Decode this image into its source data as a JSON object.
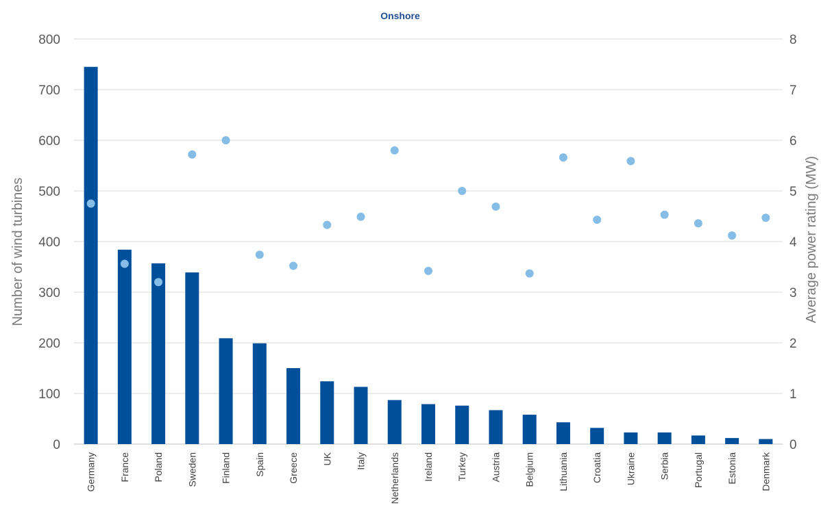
{
  "chart_data": {
    "type": "bar",
    "title": "Onshore",
    "categories": [
      "Germany",
      "France",
      "Poland",
      "Sweden",
      "Finland",
      "Spain",
      "Greece",
      "UK",
      "Italy",
      "Netherlands",
      "Ireland",
      "Turkey",
      "Austria",
      "Belgium",
      "Lithuania",
      "Croatia",
      "Ukraine",
      "Serbia",
      "Portugal",
      "Estonia",
      "Denmark"
    ],
    "ylabel": "Number of wind turbines",
    "y2label": "Average power rating (MW)",
    "ylim": [
      0,
      800
    ],
    "y2lim": [
      0,
      8
    ],
    "yticks": [
      "0",
      "100",
      "200",
      "300",
      "400",
      "500",
      "600",
      "700",
      "800"
    ],
    "y2ticks": [
      "0",
      "1",
      "2",
      "3",
      "4",
      "5",
      "6",
      "7",
      "8"
    ],
    "grid": true,
    "series": [
      {
        "type": "bar",
        "axis": "left",
        "color": "#004f9a",
        "values": [
          745,
          384,
          357,
          339,
          209,
          199,
          150,
          124,
          113,
          87,
          79,
          76,
          67,
          58,
          43,
          32,
          23,
          23,
          17,
          12,
          10
        ]
      },
      {
        "type": "scatter",
        "axis": "right",
        "color": "#86bde6",
        "values": [
          4.75,
          3.56,
          3.2,
          5.72,
          6.0,
          3.74,
          3.52,
          4.33,
          4.49,
          5.8,
          3.42,
          5.0,
          4.69,
          3.37,
          5.66,
          4.43,
          5.59,
          4.53,
          4.36,
          4.12,
          4.47
        ]
      }
    ]
  }
}
